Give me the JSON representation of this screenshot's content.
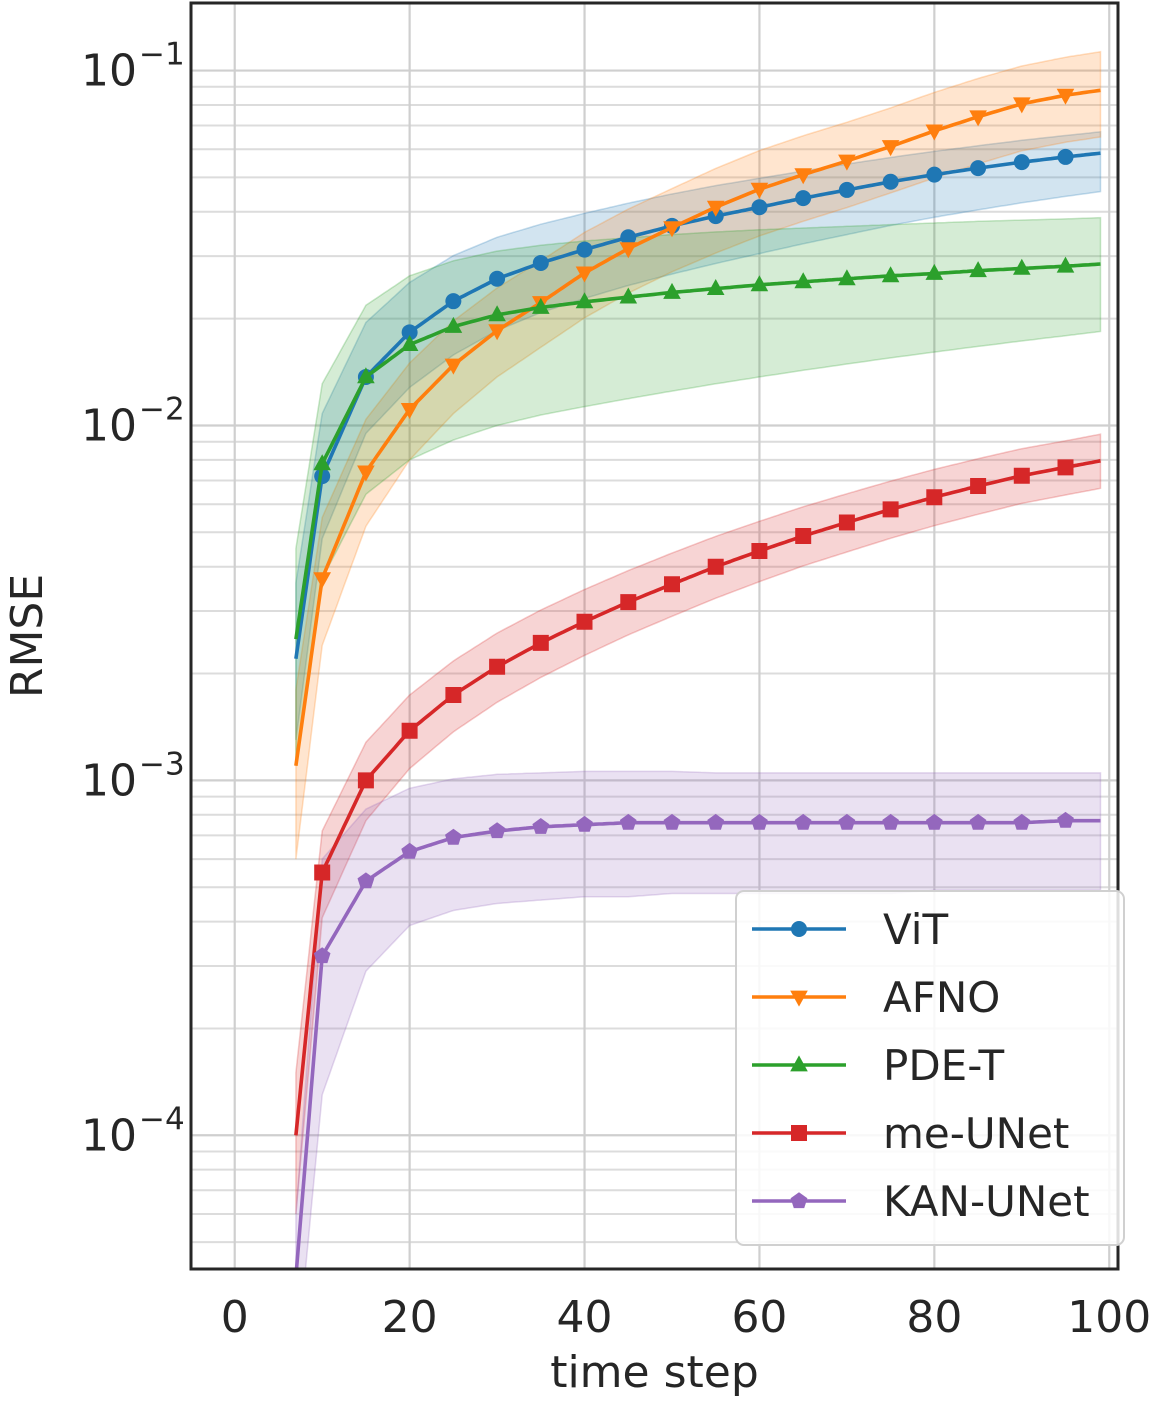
{
  "chart_data": {
    "type": "line",
    "xlabel": "time step",
    "ylabel": "RMSE",
    "xlim": [
      -5,
      101
    ],
    "ylim": [
      4.2e-05,
      0.155
    ],
    "yscale": "log",
    "grid": true,
    "legend_position": "bottom-right",
    "xticks": [
      0,
      20,
      40,
      60,
      80,
      100
    ],
    "xtick_labels": [
      "0",
      "20",
      "40",
      "60",
      "80",
      "100"
    ],
    "yticks": [
      {
        "value": 0.0001,
        "base": "10",
        "exp": "−4"
      },
      {
        "value": 0.001,
        "base": "10",
        "exp": "−3"
      },
      {
        "value": 0.01,
        "base": "10",
        "exp": "−2"
      },
      {
        "value": 0.1,
        "base": "10",
        "exp": "−1"
      }
    ],
    "x": [
      7,
      10,
      15,
      20,
      25,
      30,
      35,
      40,
      45,
      50,
      55,
      60,
      65,
      70,
      75,
      80,
      85,
      90,
      95,
      99
    ],
    "series": [
      {
        "name": "ViT",
        "color": "#1f77b4",
        "marker": "circle",
        "values": [
          0.0022,
          0.0072,
          0.0137,
          0.0183,
          0.0224,
          0.0259,
          0.0287,
          0.0313,
          0.0339,
          0.0365,
          0.0389,
          0.0412,
          0.0437,
          0.0461,
          0.0486,
          0.0509,
          0.0531,
          0.0552,
          0.0571,
          0.0585
        ],
        "lower": [
          0.0013,
          0.0048,
          0.0095,
          0.0128,
          0.0158,
          0.0185,
          0.0208,
          0.0228,
          0.0248,
          0.0267,
          0.0286,
          0.0305,
          0.0325,
          0.0345,
          0.0366,
          0.0386,
          0.0405,
          0.0424,
          0.0442,
          0.0456
        ],
        "upper": [
          0.0036,
          0.0108,
          0.0195,
          0.0253,
          0.0301,
          0.0339,
          0.0369,
          0.0396,
          0.0423,
          0.0449,
          0.0474,
          0.0497,
          0.0521,
          0.0545,
          0.0569,
          0.0592,
          0.0614,
          0.0636,
          0.0656,
          0.0672
        ]
      },
      {
        "name": "AFNO",
        "color": "#ff7f0e",
        "marker": "triangle-down",
        "values": [
          0.0011,
          0.0037,
          0.0074,
          0.0111,
          0.0148,
          0.0185,
          0.0222,
          0.0269,
          0.0315,
          0.0361,
          0.0412,
          0.0463,
          0.0509,
          0.0556,
          0.0611,
          0.0676,
          0.0741,
          0.0806,
          0.0852,
          0.088
        ],
        "lower": [
          0.0006,
          0.0024,
          0.0052,
          0.008,
          0.0108,
          0.0137,
          0.0166,
          0.0201,
          0.0236,
          0.0271,
          0.0306,
          0.0342,
          0.0376,
          0.0411,
          0.0452,
          0.0498,
          0.0546,
          0.0594,
          0.0628,
          0.065
        ],
        "upper": [
          0.0018,
          0.0055,
          0.0104,
          0.015,
          0.0197,
          0.0244,
          0.0291,
          0.035,
          0.0407,
          0.0465,
          0.053,
          0.0595,
          0.0655,
          0.0715,
          0.0785,
          0.0868,
          0.095,
          0.103,
          0.109,
          0.113
        ]
      },
      {
        "name": "PDE-T",
        "color": "#2ca02c",
        "marker": "triangle-up",
        "values": [
          0.0025,
          0.0078,
          0.0137,
          0.0169,
          0.019,
          0.0205,
          0.0215,
          0.0223,
          0.023,
          0.0237,
          0.0243,
          0.0249,
          0.0254,
          0.0259,
          0.0264,
          0.0268,
          0.0273,
          0.0277,
          0.0281,
          0.0285
        ],
        "lower": [
          0.0011,
          0.0037,
          0.0064,
          0.008,
          0.0091,
          0.01,
          0.0107,
          0.0113,
          0.0119,
          0.0125,
          0.0131,
          0.0137,
          0.0143,
          0.0149,
          0.0155,
          0.0161,
          0.0167,
          0.0173,
          0.0179,
          0.0184
        ],
        "upper": [
          0.0045,
          0.0131,
          0.0218,
          0.0264,
          0.0291,
          0.031,
          0.0322,
          0.0331,
          0.0338,
          0.0345,
          0.0351,
          0.0356,
          0.036,
          0.0364,
          0.0368,
          0.0372,
          0.0376,
          0.0379,
          0.0382,
          0.0385
        ]
      },
      {
        "name": "me-UNet",
        "color": "#d62728",
        "marker": "square",
        "values": [
          0.0001,
          0.00055,
          0.001,
          0.00138,
          0.00174,
          0.00209,
          0.00244,
          0.0028,
          0.00318,
          0.00357,
          0.004,
          0.00443,
          0.00488,
          0.00533,
          0.0058,
          0.00628,
          0.00675,
          0.00722,
          0.00762,
          0.00795
        ],
        "lower": [
          6e-05,
          0.00041,
          0.00077,
          0.00108,
          0.00137,
          0.00166,
          0.00195,
          0.00225,
          0.00257,
          0.0029,
          0.00326,
          0.00363,
          0.00402,
          0.0044,
          0.00481,
          0.00522,
          0.00562,
          0.00603,
          0.00637,
          0.00665
        ],
        "upper": [
          0.00015,
          0.00072,
          0.00128,
          0.00174,
          0.00217,
          0.0026,
          0.00302,
          0.00345,
          0.0039,
          0.00437,
          0.00487,
          0.00537,
          0.0059,
          0.00642,
          0.00697,
          0.00752,
          0.00806,
          0.0086,
          0.00905,
          0.00945
        ]
      },
      {
        "name": "KAN-UNet",
        "color": "#9467bd",
        "marker": "pentagon",
        "values": [
          4e-05,
          0.00032,
          0.00052,
          0.00063,
          0.00069,
          0.00072,
          0.00074,
          0.00075,
          0.00076,
          0.00076,
          0.00076,
          0.00076,
          0.00076,
          0.00076,
          0.00076,
          0.00076,
          0.00076,
          0.00076,
          0.00077,
          0.00077
        ],
        "lower": [
          2.2e-05,
          0.00013,
          0.00029,
          0.00039,
          0.00043,
          0.00045,
          0.00046,
          0.00047,
          0.00047,
          0.00048,
          0.00048,
          0.00048,
          0.00048,
          0.00048,
          0.00048,
          0.00049,
          0.00049,
          0.00049,
          0.00049,
          0.00049
        ],
        "upper": [
          6e-05,
          0.0006,
          0.00083,
          0.00095,
          0.00101,
          0.00104,
          0.00105,
          0.00106,
          0.00106,
          0.00106,
          0.00105,
          0.00105,
          0.00105,
          0.00105,
          0.00105,
          0.00105,
          0.00105,
          0.00105,
          0.00105,
          0.00105
        ]
      }
    ]
  }
}
